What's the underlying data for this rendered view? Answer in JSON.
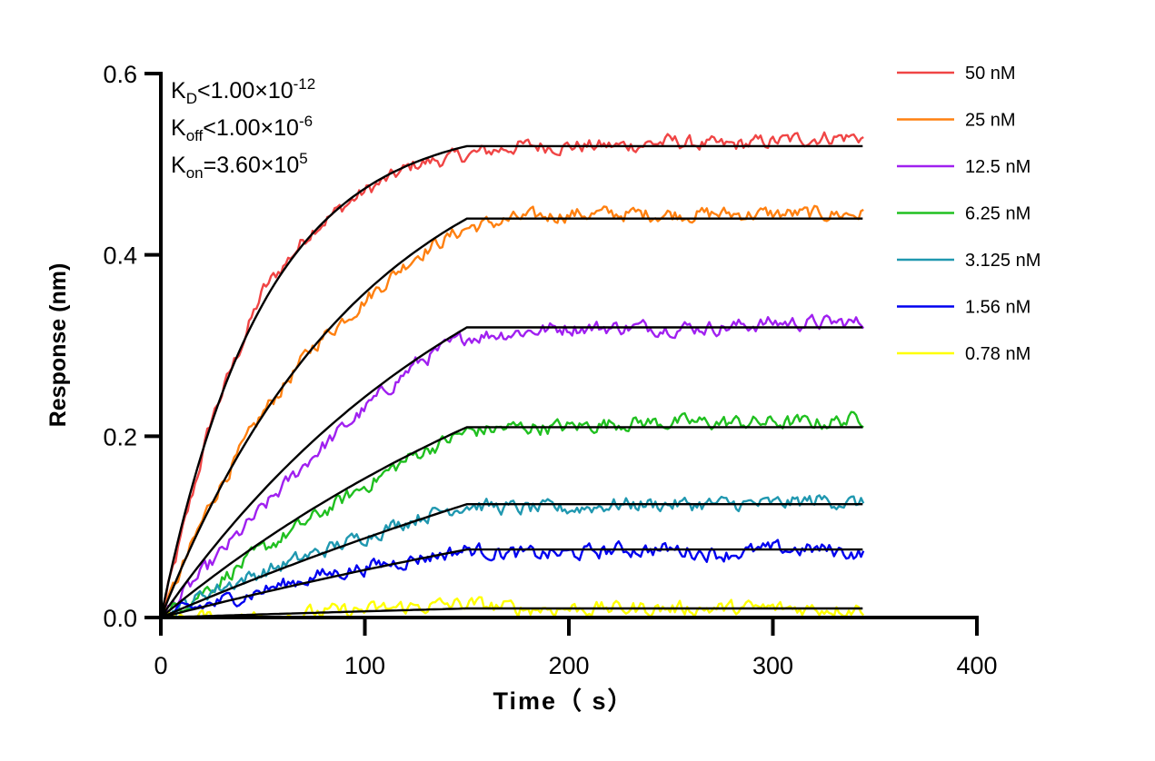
{
  "chart_data": {
    "type": "line",
    "xlabel": "Time（ s）",
    "ylabel": "Response (nm)",
    "xlim": [
      0,
      400
    ],
    "ylim": [
      0,
      0.6
    ],
    "xticks": [
      "0",
      "100",
      "200",
      "300",
      "400"
    ],
    "yticks": [
      "0.0",
      "0.2",
      "0.4",
      "0.6"
    ],
    "grid": false,
    "legend_position": "top-right",
    "annotations": {
      "kd": {
        "main": "K",
        "sub": "D",
        "rest": "<1.00×10",
        "sup": "-12"
      },
      "koff": {
        "main": "K",
        "sub": "off",
        "rest": "<1.00×10",
        "sup": "-6"
      },
      "kon": {
        "main": "K",
        "sub": "on",
        "rest": "=3.60×10",
        "sup": "5"
      }
    },
    "association_end": 150,
    "dissociation_end": 345,
    "fit_color": "#000000",
    "x": [
      0,
      25,
      50,
      75,
      100,
      125,
      150,
      175,
      200,
      225,
      250,
      275,
      300,
      325,
      345
    ],
    "series": [
      {
        "name": "50 nM",
        "color": "#f04545",
        "fit_plateau": 0.52,
        "fit_rate": 0.02,
        "values": [
          0,
          0.22,
          0.36,
          0.43,
          0.47,
          0.5,
          0.51,
          0.52,
          0.52,
          0.52,
          0.525,
          0.52,
          0.525,
          0.53,
          0.53
        ]
      },
      {
        "name": "25 nM",
        "color": "#ff8010",
        "fit_plateau": 0.44,
        "fit_rate": 0.01,
        "values": [
          0,
          0.13,
          0.225,
          0.3,
          0.35,
          0.4,
          0.43,
          0.44,
          0.445,
          0.445,
          0.445,
          0.445,
          0.445,
          0.445,
          0.445
        ]
      },
      {
        "name": "12.5 nM",
        "color": "#a020f0",
        "fit_plateau": 0.32,
        "fit_rate": 0.006,
        "values": [
          0,
          0.06,
          0.12,
          0.18,
          0.23,
          0.28,
          0.31,
          0.315,
          0.32,
          0.32,
          0.32,
          0.32,
          0.325,
          0.325,
          0.325
        ]
      },
      {
        "name": "6.25 nM",
        "color": "#20c020",
        "fit_plateau": 0.21,
        "fit_rate": 0.004,
        "values": [
          0,
          0.035,
          0.075,
          0.11,
          0.145,
          0.18,
          0.205,
          0.21,
          0.21,
          0.215,
          0.215,
          0.215,
          0.215,
          0.215,
          0.22
        ]
      },
      {
        "name": "3.125 nM",
        "color": "#2098b0",
        "fit_plateau": 0.125,
        "fit_rate": 0.002,
        "values": [
          0,
          0.03,
          0.05,
          0.07,
          0.09,
          0.11,
          0.125,
          0.12,
          0.12,
          0.125,
          0.125,
          0.125,
          0.125,
          0.13,
          0.125
        ]
      },
      {
        "name": "1.56 nM",
        "color": "#0000f0",
        "fit_plateau": 0.075,
        "fit_rate": 0.002,
        "values": [
          0,
          0.015,
          0.03,
          0.045,
          0.055,
          0.065,
          0.075,
          0.07,
          0.07,
          0.075,
          0.075,
          0.07,
          0.075,
          0.075,
          0.07
        ]
      },
      {
        "name": "0.78 nM",
        "color": "#ffff00",
        "fit_plateau": 0.01,
        "fit_rate": 0.001,
        "values": [
          0,
          0,
          0,
          0.005,
          0.008,
          0.012,
          0.015,
          0.01,
          0.01,
          0.01,
          0.01,
          0.01,
          0.01,
          0.01,
          0.01
        ]
      }
    ]
  }
}
